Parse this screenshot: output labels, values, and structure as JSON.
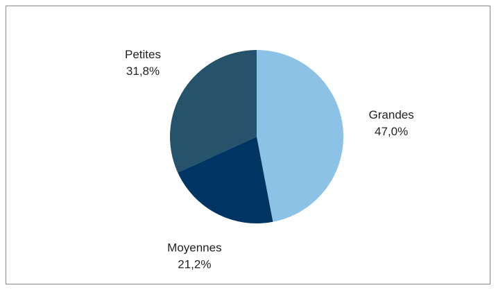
{
  "chart_data": {
    "type": "pie",
    "categories": [
      "Grandes",
      "Moyennes",
      "Petites"
    ],
    "values": [
      47.0,
      21.2,
      31.8
    ],
    "value_labels": [
      "47,0%",
      "21,2%",
      "31,8%"
    ],
    "colors": [
      "#8cc2e6",
      "#003462",
      "#24536b"
    ]
  }
}
